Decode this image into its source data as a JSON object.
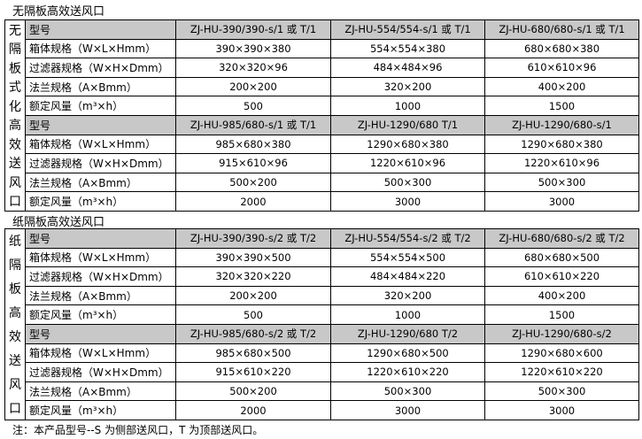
{
  "sections": [
    {
      "title": "无隔板高效送风口",
      "side_label": [
        "无",
        "隔",
        "板",
        "式",
        "化",
        "高",
        "效",
        "送",
        "风",
        "口"
      ],
      "groups": [
        {
          "models": [
            "ZJ-HU-390/390-s/1 或 T/1",
            "ZJ-HU-554/554-s/1 或 T/1",
            "ZJ-HU-680/680-s/1 或 T/1"
          ],
          "rows": [
            {
              "label": "箱体规格（W×L×Hmm）",
              "values": [
                "390×390×380",
                "554×554×380",
                "680×680×380"
              ]
            },
            {
              "label": "过滤器规格（W×H×Dmm）",
              "values": [
                "320×320×96",
                "484×484×96",
                "610×610×96"
              ]
            },
            {
              "label": "法兰规格（A×Bmm）",
              "values": [
                "200×200",
                "320×200",
                "400×200"
              ]
            },
            {
              "label": "额定风量（m³×h）",
              "values": [
                "500",
                "1000",
                "1500"
              ]
            }
          ]
        },
        {
          "models": [
            "ZJ-HU-985/680-s/1 或 T/1",
            "ZJ-HU-1290/680  T/1",
            "ZJ-HU-1290/680-s/1"
          ],
          "rows": [
            {
              "label": "箱体规格（W×L×Hmm）",
              "values": [
                "985×680×380",
                "1290×680×380",
                "1290×680×380"
              ]
            },
            {
              "label": "过滤器规格（W×H×Dmm）",
              "values": [
                "915×610×96",
                "1220×610×96",
                "1220×610×96"
              ]
            },
            {
              "label": "法兰规格（A×Bmm）",
              "values": [
                "500×200",
                "500×300",
                "500×300"
              ]
            },
            {
              "label": "额定风量（m³×h）",
              "values": [
                "2000",
                "3000",
                "3000"
              ]
            }
          ]
        }
      ]
    },
    {
      "title": "纸隔板高效送风口",
      "side_label": [
        "纸",
        "隔",
        "板",
        "高",
        "效",
        "送",
        "风",
        "口"
      ],
      "groups": [
        {
          "models": [
            "ZJ-HU-390/390-s/2 或 T/2",
            "ZJ-HU-554/554-s/2 或 T/2",
            "ZJ-HU-680/680-s/2 或 T/2"
          ],
          "rows": [
            {
              "label": "箱体规格（W×L×Hmm）",
              "values": [
                "390×390×500",
                "554×554×500",
                "680×680×500"
              ]
            },
            {
              "label": "过滤器规格（W×H×Dmm）",
              "values": [
                "320×320×220",
                "484×484×220",
                "610×610×220"
              ]
            },
            {
              "label": "法兰规格（A×Bmm）",
              "values": [
                "200×200",
                "320×200",
                "400×200"
              ]
            },
            {
              "label": "额定风量（m³×h）",
              "values": [
                "500",
                "1000",
                "1500"
              ]
            }
          ]
        },
        {
          "models": [
            "ZJ-HU-985/680-s/2 或 T/2",
            "ZJ-HU-1290/680  T/2",
            "ZJ-HU-1290/680-s/2"
          ],
          "rows": [
            {
              "label": "箱体规格（W×L×Hmm）",
              "values": [
                "985×680×500",
                "1290×680×500",
                "1290×680×600"
              ]
            },
            {
              "label": "过滤器规格（W×H×Dmm）",
              "values": [
                "915×610×220",
                "1220×610×220",
                "1220×610×220"
              ]
            },
            {
              "label": "法兰规格（A×Bmm）",
              "values": [
                "500×200",
                "500×300",
                "500×300"
              ]
            },
            {
              "label": "额定风量（m³×h）",
              "values": [
                "2000",
                "3000",
                "3000"
              ]
            }
          ]
        }
      ]
    }
  ],
  "model_label": "型号",
  "note": "注：本产品型号--S 为侧部送风口，T 为顶部送风口。"
}
